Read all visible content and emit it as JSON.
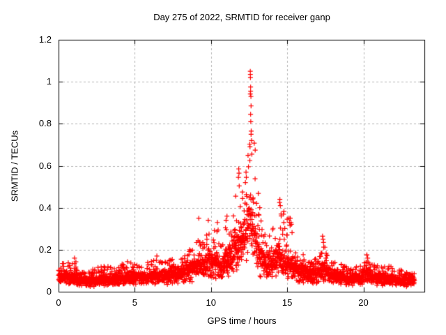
{
  "figure": {
    "background": "#ffffff",
    "border_color": "#000000",
    "grid_color": "#b3b3b3",
    "text_color": "#000000"
  },
  "chart_data": {
    "type": "scatter",
    "title": "Day 275 of 2022, SRMTID for receiver ganp",
    "xlabel": "GPS time / hours",
    "ylabel": "SRMTID / TECUs",
    "xlim": [
      0,
      24
    ],
    "ylim": [
      0,
      1.2
    ],
    "xticks": {
      "values": [
        0,
        5,
        10,
        15,
        20
      ],
      "labels": [
        "0",
        "5",
        "10",
        "15",
        "20"
      ]
    },
    "yticks": {
      "values": [
        0,
        0.2,
        0.4,
        0.6,
        0.8,
        1.0,
        1.2
      ],
      "labels": [
        "0",
        "0.2",
        "0.4",
        "0.6",
        "0.8",
        "1",
        "1.2"
      ]
    },
    "grid": {
      "visible": true,
      "style": "dashed",
      "at": "major-ticks"
    },
    "legend": "none",
    "marker": {
      "shape": "plus",
      "color": "#ff0000",
      "size": 7
    },
    "peak": {
      "time_hours": 12.6,
      "value_tecu": 1.05
    },
    "series": [
      {
        "name": "SRMTID for receiver ganp",
        "t_start": 0.0,
        "t_end": 23.35,
        "points_per_hour": 120,
        "envelope": [
          [
            0.0,
            0.065,
            0.12
          ],
          [
            0.4,
            0.07,
            0.15
          ],
          [
            0.8,
            0.06,
            0.13
          ],
          [
            1.05,
            0.06,
            0.16
          ],
          [
            1.4,
            0.05,
            0.11
          ],
          [
            1.8,
            0.045,
            0.09
          ],
          [
            2.2,
            0.05,
            0.11
          ],
          [
            2.7,
            0.05,
            0.12
          ],
          [
            3.1,
            0.055,
            0.13
          ],
          [
            3.6,
            0.05,
            0.11
          ],
          [
            4.1,
            0.06,
            0.13
          ],
          [
            4.6,
            0.065,
            0.15
          ],
          [
            5.0,
            0.07,
            0.135
          ],
          [
            5.4,
            0.06,
            0.12
          ],
          [
            5.9,
            0.065,
            0.155
          ],
          [
            6.4,
            0.07,
            0.17
          ],
          [
            6.9,
            0.07,
            0.14
          ],
          [
            7.4,
            0.075,
            0.16
          ],
          [
            7.9,
            0.08,
            0.15
          ],
          [
            8.4,
            0.09,
            0.18
          ],
          [
            8.8,
            0.1,
            0.22
          ],
          [
            9.2,
            0.13,
            0.35
          ],
          [
            9.5,
            0.1,
            0.22
          ],
          [
            9.8,
            0.14,
            0.34
          ],
          [
            10.1,
            0.12,
            0.28
          ],
          [
            10.4,
            0.13,
            0.33
          ],
          [
            10.7,
            0.1,
            0.22
          ],
          [
            11.0,
            0.14,
            0.36
          ],
          [
            11.3,
            0.15,
            0.3
          ],
          [
            11.6,
            0.19,
            0.46
          ],
          [
            11.85,
            0.24,
            0.585
          ],
          [
            12.1,
            0.21,
            0.48
          ],
          [
            12.35,
            0.26,
            0.6
          ],
          [
            12.55,
            0.32,
            1.05
          ],
          [
            12.75,
            0.3,
            0.92
          ],
          [
            12.95,
            0.22,
            0.62
          ],
          [
            13.2,
            0.16,
            0.4
          ],
          [
            13.5,
            0.13,
            0.3
          ],
          [
            13.8,
            0.12,
            0.28
          ],
          [
            14.1,
            0.13,
            0.32
          ],
          [
            14.5,
            0.16,
            0.44
          ],
          [
            14.8,
            0.15,
            0.4
          ],
          [
            15.2,
            0.13,
            0.35
          ],
          [
            15.6,
            0.1,
            0.2
          ],
          [
            16.0,
            0.09,
            0.18
          ],
          [
            16.5,
            0.08,
            0.15
          ],
          [
            17.0,
            0.08,
            0.16
          ],
          [
            17.35,
            0.1,
            0.27
          ],
          [
            17.7,
            0.08,
            0.15
          ],
          [
            18.1,
            0.07,
            0.14
          ],
          [
            18.6,
            0.07,
            0.13
          ],
          [
            19.1,
            0.06,
            0.12
          ],
          [
            19.6,
            0.06,
            0.12
          ],
          [
            20.0,
            0.07,
            0.14
          ],
          [
            20.25,
            0.08,
            0.18
          ],
          [
            20.7,
            0.065,
            0.13
          ],
          [
            21.2,
            0.06,
            0.12
          ],
          [
            21.7,
            0.06,
            0.13
          ],
          [
            22.2,
            0.055,
            0.11
          ],
          [
            22.7,
            0.05,
            0.1
          ],
          [
            23.35,
            0.05,
            0.09
          ]
        ],
        "extreme_points": [
          [
            12.58,
            1.05
          ],
          [
            12.585,
            1.035
          ],
          [
            12.59,
            1.02
          ],
          [
            12.6,
            0.975
          ],
          [
            12.6,
            0.955
          ],
          [
            12.62,
            0.93
          ],
          [
            12.63,
            0.885
          ],
          [
            12.6,
            0.845
          ],
          [
            12.61,
            0.81
          ],
          [
            12.64,
            0.765
          ],
          [
            12.63,
            0.75
          ],
          [
            12.66,
            0.72
          ],
          [
            12.56,
            0.69
          ],
          [
            12.68,
            0.655
          ],
          [
            12.55,
            0.625
          ],
          [
            11.82,
            0.585
          ],
          [
            11.84,
            0.565
          ],
          [
            11.8,
            0.545
          ],
          [
            12.3,
            0.57
          ],
          [
            12.32,
            0.545
          ],
          [
            11.62,
            0.455
          ],
          [
            13.2,
            0.4
          ],
          [
            14.52,
            0.44
          ],
          [
            14.5,
            0.425
          ],
          [
            14.55,
            0.41
          ],
          [
            14.6,
            0.37
          ],
          [
            9.2,
            0.35
          ],
          [
            9.82,
            0.34
          ],
          [
            10.42,
            0.33
          ],
          [
            11.05,
            0.36
          ],
          [
            15.2,
            0.35
          ],
          [
            15.25,
            0.33
          ],
          [
            17.32,
            0.265
          ],
          [
            17.35,
            0.25
          ],
          [
            17.38,
            0.235
          ],
          [
            20.22,
            0.175
          ],
          [
            20.28,
            0.16
          ],
          [
            8.6,
            0.2
          ],
          [
            6.45,
            0.17
          ],
          [
            1.05,
            0.16
          ]
        ]
      }
    ]
  }
}
